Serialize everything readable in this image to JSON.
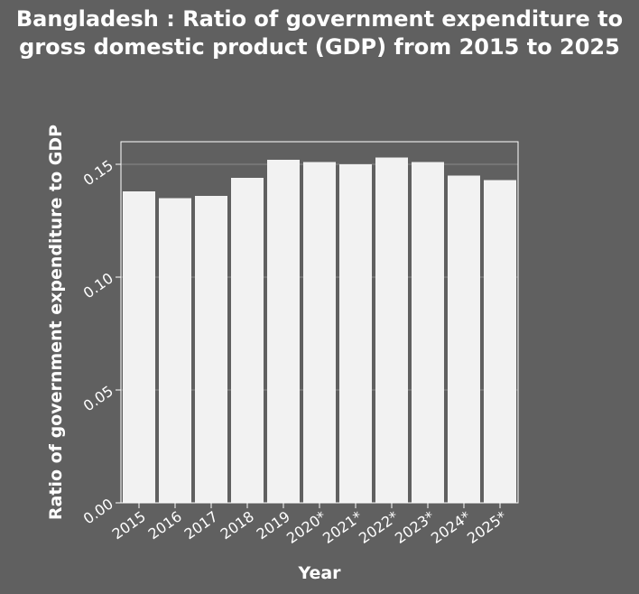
{
  "chart_data": {
    "type": "bar",
    "title": "Bangladesh : Ratio of government expenditure to gross domestic product (GDP) from 2015 to 2025",
    "xlabel": "Year",
    "ylabel": "Ratio of government expenditure to GDP",
    "categories": [
      "2015",
      "2016",
      "2017",
      "2018",
      "2019",
      "2020*",
      "2021*",
      "2022*",
      "2023*",
      "2024*",
      "2025*"
    ],
    "values": [
      0.138,
      0.135,
      0.136,
      0.144,
      0.152,
      0.151,
      0.15,
      0.153,
      0.151,
      0.145,
      0.143
    ],
    "ylim": [
      0,
      0.16
    ],
    "yticks": [
      "0.00",
      "0.05",
      "0.10",
      "0.15"
    ],
    "grid": true,
    "colors": {
      "background": "#606060",
      "bar": "#f2f2f2",
      "grid": "#8a8a8a",
      "axis": "#ffffff"
    }
  }
}
